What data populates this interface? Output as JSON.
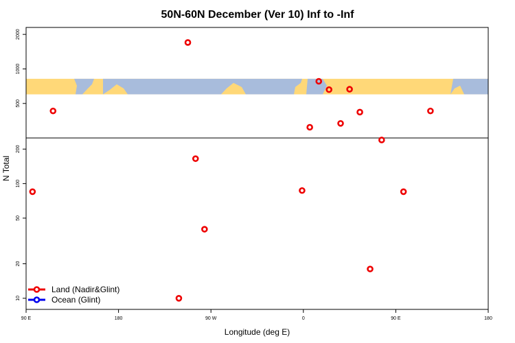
{
  "chart_data": {
    "type": "scatter",
    "title": "50N-60N December (Ver 10)   Inf to -Inf",
    "xlabel": "Longitude (deg E)",
    "ylabel": "N Total",
    "y_scale": "log",
    "xlim": [
      90,
      450
    ],
    "ylim": [
      8,
      2300
    ],
    "x_ticks": [
      {
        "value": 90,
        "label": "90 E"
      },
      {
        "value": 162,
        "label": "180"
      },
      {
        "value": 234,
        "label": "90 W"
      },
      {
        "value": 306,
        "label": "0"
      },
      {
        "value": 378,
        "label": "90 E"
      },
      {
        "value": 450,
        "label": "180"
      }
    ],
    "y_ticks": [
      {
        "value": 10,
        "label": "10"
      },
      {
        "value": 20,
        "label": "20"
      },
      {
        "value": 50,
        "label": "50"
      },
      {
        "value": 100,
        "label": "100"
      },
      {
        "value": 200,
        "label": "200"
      },
      {
        "value": 500,
        "label": "500"
      },
      {
        "value": 1000,
        "label": "1000"
      },
      {
        "value": 2000,
        "label": "2000"
      }
    ],
    "reference_line": 250,
    "map_band": {
      "y_low": 600,
      "y_high": 820,
      "land_color": "#FFD878",
      "ocean_color": "#A8BCDC"
    },
    "series": [
      {
        "name": "Land (Nadir&Glint)",
        "color": "#EE0000",
        "points": [
          {
            "x": 95,
            "y": 85
          },
          {
            "x": 111,
            "y": 430
          },
          {
            "x": 209,
            "y": 10
          },
          {
            "x": 216,
            "y": 1700
          },
          {
            "x": 222,
            "y": 165
          },
          {
            "x": 229,
            "y": 40
          },
          {
            "x": 305,
            "y": 87
          },
          {
            "x": 311,
            "y": 310
          },
          {
            "x": 318,
            "y": 780
          },
          {
            "x": 326,
            "y": 660
          },
          {
            "x": 335,
            "y": 335
          },
          {
            "x": 342,
            "y": 665
          },
          {
            "x": 350,
            "y": 420
          },
          {
            "x": 358,
            "y": 18
          },
          {
            "x": 367,
            "y": 240
          },
          {
            "x": 384,
            "y": 85
          },
          {
            "x": 405,
            "y": 430
          }
        ]
      },
      {
        "name": "Ocean (Glint)",
        "color": "#0000EE",
        "points": []
      }
    ],
    "legend_position": "bottom-left"
  }
}
